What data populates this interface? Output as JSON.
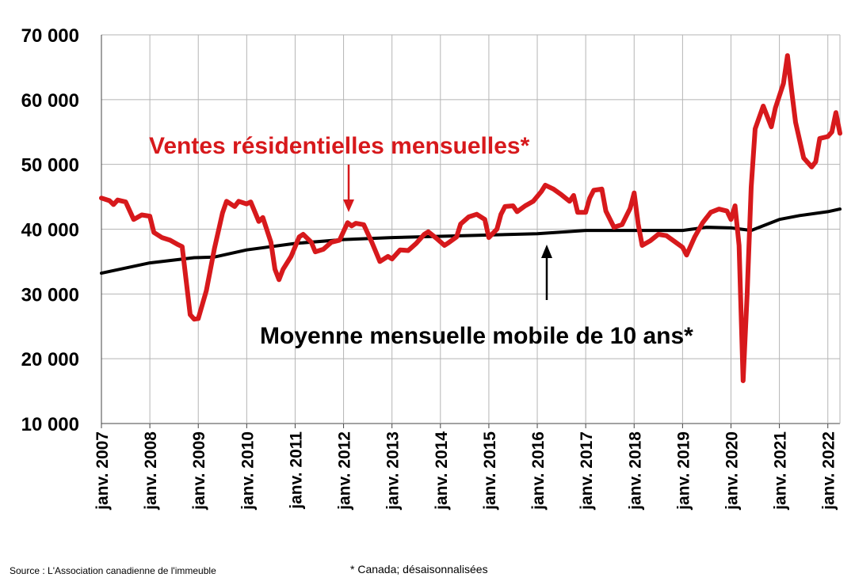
{
  "chart_data": {
    "type": "line",
    "ylim": [
      10000,
      70000
    ],
    "yticks": [
      10000,
      20000,
      30000,
      40000,
      50000,
      60000,
      70000
    ],
    "ytick_labels": [
      "10 000",
      "20 000",
      "30 000",
      "40 000",
      "50 000",
      "60 000",
      "70 000"
    ],
    "xlim": [
      "2007-01",
      "2022-04"
    ],
    "xtick_labels": [
      "janv. 2007",
      "janv. 2008",
      "janv. 2009",
      "janv. 2010",
      "janv. 2011",
      "janv. 2012",
      "janv. 2013",
      "janv. 2014",
      "janv. 2015",
      "janv. 2016",
      "janv. 2017",
      "janv. 2018",
      "janv. 2019",
      "janv. 2020",
      "janv. 2021",
      "janv. 2022"
    ],
    "grid": true,
    "annotations": {
      "sales_label": "Ventes résidentielles mensuelles*",
      "average_label": "Moyenne mensuelle mobile de 10 ans*"
    },
    "series": [
      {
        "name": "Ventes résidentielles mensuelles*",
        "color": "#d7191c",
        "points": [
          [
            "2007-01",
            44800
          ],
          [
            "2007-03",
            44400
          ],
          [
            "2007-04",
            43800
          ],
          [
            "2007-05",
            44500
          ],
          [
            "2007-07",
            44200
          ],
          [
            "2007-09",
            41500
          ],
          [
            "2007-11",
            42200
          ],
          [
            "2008-01",
            42000
          ],
          [
            "2008-02",
            39500
          ],
          [
            "2008-04",
            38700
          ],
          [
            "2008-06",
            38300
          ],
          [
            "2008-08",
            37600
          ],
          [
            "2008-09",
            37300
          ],
          [
            "2008-10",
            32000
          ],
          [
            "2008-11",
            26800
          ],
          [
            "2008-12",
            26100
          ],
          [
            "2009-01",
            26200
          ],
          [
            "2009-03",
            30500
          ],
          [
            "2009-05",
            37000
          ],
          [
            "2009-07",
            42500
          ],
          [
            "2009-08",
            44300
          ],
          [
            "2009-10",
            43500
          ],
          [
            "2009-11",
            44300
          ],
          [
            "2010-01",
            43900
          ],
          [
            "2010-02",
            44200
          ],
          [
            "2010-04",
            41200
          ],
          [
            "2010-05",
            41800
          ],
          [
            "2010-07",
            38000
          ],
          [
            "2010-08",
            33800
          ],
          [
            "2010-09",
            32200
          ],
          [
            "2010-10",
            33800
          ],
          [
            "2010-12",
            35800
          ],
          [
            "2011-02",
            38800
          ],
          [
            "2011-03",
            39200
          ],
          [
            "2011-05",
            38000
          ],
          [
            "2011-06",
            36500
          ],
          [
            "2011-08",
            36900
          ],
          [
            "2011-10",
            38000
          ],
          [
            "2011-12",
            38300
          ],
          [
            "2012-02",
            41000
          ],
          [
            "2012-03",
            40500
          ],
          [
            "2012-04",
            40900
          ],
          [
            "2012-06",
            40700
          ],
          [
            "2012-08",
            38000
          ],
          [
            "2012-10",
            35000
          ],
          [
            "2012-12",
            35800
          ],
          [
            "2013-01",
            35400
          ],
          [
            "2013-03",
            36800
          ],
          [
            "2013-05",
            36700
          ],
          [
            "2013-07",
            37800
          ],
          [
            "2013-09",
            39200
          ],
          [
            "2013-10",
            39600
          ],
          [
            "2013-12",
            38600
          ],
          [
            "2014-02",
            37500
          ],
          [
            "2014-03",
            37900
          ],
          [
            "2014-05",
            38800
          ],
          [
            "2014-06",
            40800
          ],
          [
            "2014-08",
            41900
          ],
          [
            "2014-10",
            42300
          ],
          [
            "2014-12",
            41500
          ],
          [
            "2015-01",
            38700
          ],
          [
            "2015-03",
            40000
          ],
          [
            "2015-04",
            42300
          ],
          [
            "2015-05",
            43500
          ],
          [
            "2015-07",
            43600
          ],
          [
            "2015-08",
            42700
          ],
          [
            "2015-10",
            43600
          ],
          [
            "2015-12",
            44300
          ],
          [
            "2016-02",
            45800
          ],
          [
            "2016-03",
            46800
          ],
          [
            "2016-05",
            46200
          ],
          [
            "2016-07",
            45300
          ],
          [
            "2016-09",
            44300
          ],
          [
            "2016-10",
            45200
          ],
          [
            "2016-11",
            42600
          ],
          [
            "2017-01",
            42600
          ],
          [
            "2017-02",
            44800
          ],
          [
            "2017-03",
            46000
          ],
          [
            "2017-05",
            46200
          ],
          [
            "2017-06",
            42800
          ],
          [
            "2017-08",
            40300
          ],
          [
            "2017-10",
            40700
          ],
          [
            "2017-12",
            43200
          ],
          [
            "2018-01",
            45600
          ],
          [
            "2018-02",
            40800
          ],
          [
            "2018-03",
            37500
          ],
          [
            "2018-05",
            38200
          ],
          [
            "2018-07",
            39200
          ],
          [
            "2018-09",
            39000
          ],
          [
            "2018-11",
            38100
          ],
          [
            "2019-01",
            37200
          ],
          [
            "2019-02",
            36000
          ],
          [
            "2019-04",
            38800
          ],
          [
            "2019-06",
            41000
          ],
          [
            "2019-08",
            42600
          ],
          [
            "2019-10",
            43100
          ],
          [
            "2019-12",
            42800
          ],
          [
            "2020-01",
            41500
          ],
          [
            "2020-02",
            43600
          ],
          [
            "2020-03",
            37500
          ],
          [
            "2020-04",
            16600
          ],
          [
            "2020-05",
            30000
          ],
          [
            "2020-06",
            46500
          ],
          [
            "2020-07",
            55500
          ],
          [
            "2020-09",
            59000
          ],
          [
            "2020-11",
            55800
          ],
          [
            "2020-12",
            58700
          ],
          [
            "2021-02",
            62500
          ],
          [
            "2021-03",
            66800
          ],
          [
            "2021-04",
            61500
          ],
          [
            "2021-05",
            56500
          ],
          [
            "2021-07",
            51000
          ],
          [
            "2021-09",
            49600
          ],
          [
            "2021-10",
            50400
          ],
          [
            "2021-11",
            54000
          ],
          [
            "2022-01",
            54300
          ],
          [
            "2022-02",
            55000
          ],
          [
            "2022-03",
            58000
          ],
          [
            "2022-04",
            54800
          ]
        ]
      },
      {
        "name": "Moyenne mensuelle mobile de 10 ans*",
        "color": "#000000",
        "points": [
          [
            "2007-01",
            33200
          ],
          [
            "2008-01",
            34800
          ],
          [
            "2008-12",
            35600
          ],
          [
            "2009-05",
            35700
          ],
          [
            "2010-01",
            36800
          ],
          [
            "2011-01",
            37800
          ],
          [
            "2012-01",
            38400
          ],
          [
            "2013-01",
            38700
          ],
          [
            "2014-01",
            38900
          ],
          [
            "2015-01",
            39100
          ],
          [
            "2016-01",
            39300
          ],
          [
            "2017-01",
            39800
          ],
          [
            "2018-01",
            39800
          ],
          [
            "2019-01",
            39800
          ],
          [
            "2019-07",
            40300
          ],
          [
            "2020-01",
            40200
          ],
          [
            "2020-06",
            39800
          ],
          [
            "2021-01",
            41500
          ],
          [
            "2021-06",
            42100
          ],
          [
            "2022-01",
            42700
          ],
          [
            "2022-04",
            43100
          ]
        ]
      }
    ]
  },
  "footer": {
    "source": "Source : L'Association canadienne de l'immeuble",
    "note": "* Canada; désaisonnalisées"
  }
}
